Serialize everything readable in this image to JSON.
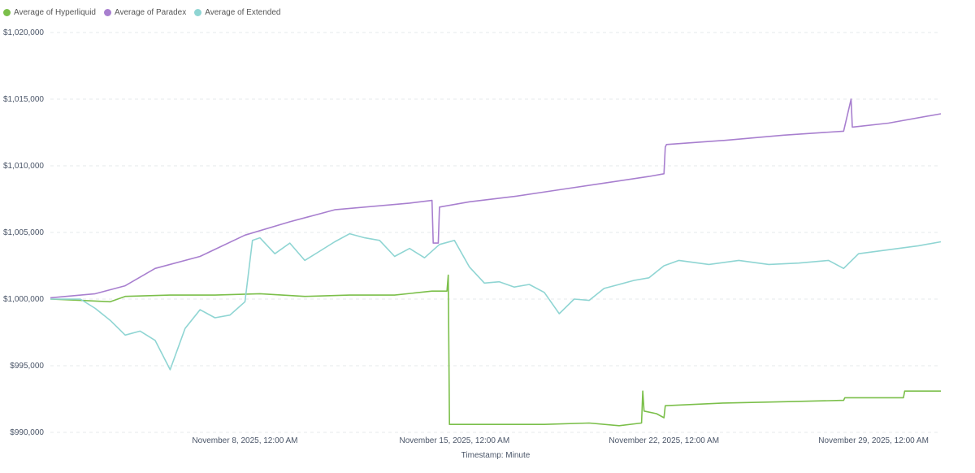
{
  "chart_data": {
    "type": "line",
    "xlabel": "Timestamp: Minute",
    "ylabel": "",
    "ylim": [
      990000,
      1020000
    ],
    "yticks": [
      990000,
      995000,
      1000000,
      1005000,
      1010000,
      1015000,
      1020000
    ],
    "ytick_labels": [
      "$990,000",
      "$995,000",
      "$1,000,000",
      "$1,005,000",
      "$1,010,000",
      "$1,015,000",
      "$1,020,000"
    ],
    "xlim": [
      "2025-11-01T12:00",
      "2025-12-01T06:00"
    ],
    "xticks": [
      "2025-11-08T00:00",
      "2025-11-15T00:00",
      "2025-11-22T00:00",
      "2025-11-29T00:00"
    ],
    "xtick_labels": [
      "November 8, 2025, 12:00 AM",
      "November 15, 2025, 12:00 AM",
      "November 22, 2025, 12:00 AM",
      "November 29, 2025, 12:00 AM"
    ],
    "grid": "horizontal dashed",
    "legend_position": "top-left",
    "series": [
      {
        "name": "Average of Hyperliquid",
        "color": "#7bbf4a",
        "points": [
          [
            "2025-11-01T12:00",
            1000000
          ],
          [
            "2025-11-02T12:00",
            999900
          ],
          [
            "2025-11-03T12:00",
            999800
          ],
          [
            "2025-11-04T00:00",
            1000200
          ],
          [
            "2025-11-05T12:00",
            1000300
          ],
          [
            "2025-11-07T00:00",
            1000300
          ],
          [
            "2025-11-08T12:00",
            1000400
          ],
          [
            "2025-11-10T00:00",
            1000200
          ],
          [
            "2025-11-11T12:00",
            1000300
          ],
          [
            "2025-11-13T00:00",
            1000300
          ],
          [
            "2025-11-14T06:00",
            1000600
          ],
          [
            "2025-11-14T18:00",
            1000600
          ],
          [
            "2025-11-14T19:00",
            1001800
          ],
          [
            "2025-11-14T20:00",
            990600
          ],
          [
            "2025-11-16T00:00",
            990600
          ],
          [
            "2025-11-18T00:00",
            990600
          ],
          [
            "2025-11-19T12:00",
            990700
          ],
          [
            "2025-11-20T12:00",
            990500
          ],
          [
            "2025-11-21T06:00",
            990700
          ],
          [
            "2025-11-21T07:00",
            993100
          ],
          [
            "2025-11-21T08:00",
            991600
          ],
          [
            "2025-11-21T18:00",
            991400
          ],
          [
            "2025-11-22T00:00",
            991100
          ],
          [
            "2025-11-22T01:00",
            992000
          ],
          [
            "2025-11-24T00:00",
            992200
          ],
          [
            "2025-11-26T00:00",
            992300
          ],
          [
            "2025-11-28T00:00",
            992400
          ],
          [
            "2025-11-28T01:00",
            992600
          ],
          [
            "2025-11-30T00:00",
            992600
          ],
          [
            "2025-11-30T01:00",
            993100
          ],
          [
            "2025-12-01T06:00",
            993100
          ]
        ]
      },
      {
        "name": "Average of Paradex",
        "color": "#a87fcf",
        "points": [
          [
            "2025-11-01T12:00",
            1000100
          ],
          [
            "2025-11-03T00:00",
            1000400
          ],
          [
            "2025-11-04T00:00",
            1001000
          ],
          [
            "2025-11-05T00:00",
            1002300
          ],
          [
            "2025-11-06T12:00",
            1003200
          ],
          [
            "2025-11-08T00:00",
            1004800
          ],
          [
            "2025-11-09T12:00",
            1005800
          ],
          [
            "2025-11-11T00:00",
            1006700
          ],
          [
            "2025-11-13T12:00",
            1007200
          ],
          [
            "2025-11-14T06:00",
            1007400
          ],
          [
            "2025-11-14T07:00",
            1004200
          ],
          [
            "2025-11-14T11:00",
            1004200
          ],
          [
            "2025-11-14T12:00",
            1006900
          ],
          [
            "2025-11-15T12:00",
            1007300
          ],
          [
            "2025-11-17T00:00",
            1007700
          ],
          [
            "2025-11-18T12:00",
            1008200
          ],
          [
            "2025-11-20T00:00",
            1008700
          ],
          [
            "2025-11-21T12:00",
            1009200
          ],
          [
            "2025-11-22T00:00",
            1009400
          ],
          [
            "2025-11-22T01:00",
            1011400
          ],
          [
            "2025-11-22T02:00",
            1011600
          ],
          [
            "2025-11-24T00:00",
            1011900
          ],
          [
            "2025-11-26T00:00",
            1012300
          ],
          [
            "2025-11-28T00:00",
            1012600
          ],
          [
            "2025-11-28T06:00",
            1015000
          ],
          [
            "2025-11-28T07:00",
            1012900
          ],
          [
            "2025-11-29T12:00",
            1013200
          ],
          [
            "2025-12-01T06:00",
            1013900
          ]
        ]
      },
      {
        "name": "Average of Extended",
        "color": "#8fd5d3",
        "points": [
          [
            "2025-11-01T12:00",
            1000000
          ],
          [
            "2025-11-02T12:00",
            1000000
          ],
          [
            "2025-11-03T00:00",
            999300
          ],
          [
            "2025-11-03T12:00",
            998400
          ],
          [
            "2025-11-04T00:00",
            997300
          ],
          [
            "2025-11-04T12:00",
            997600
          ],
          [
            "2025-11-05T00:00",
            996900
          ],
          [
            "2025-11-05T12:00",
            994700
          ],
          [
            "2025-11-06T00:00",
            997800
          ],
          [
            "2025-11-06T12:00",
            999200
          ],
          [
            "2025-11-07T00:00",
            998600
          ],
          [
            "2025-11-07T12:00",
            998800
          ],
          [
            "2025-11-08T00:00",
            999800
          ],
          [
            "2025-11-08T06:00",
            1004400
          ],
          [
            "2025-11-08T12:00",
            1004600
          ],
          [
            "2025-11-09T00:00",
            1003400
          ],
          [
            "2025-11-09T12:00",
            1004200
          ],
          [
            "2025-11-10T00:00",
            1002900
          ],
          [
            "2025-11-10T12:00",
            1003600
          ],
          [
            "2025-11-11T00:00",
            1004300
          ],
          [
            "2025-11-11T12:00",
            1004900
          ],
          [
            "2025-11-12T00:00",
            1004600
          ],
          [
            "2025-11-12T12:00",
            1004400
          ],
          [
            "2025-11-13T00:00",
            1003200
          ],
          [
            "2025-11-13T12:00",
            1003800
          ],
          [
            "2025-11-14T00:00",
            1003100
          ],
          [
            "2025-11-14T12:00",
            1004100
          ],
          [
            "2025-11-15T00:00",
            1004400
          ],
          [
            "2025-11-15T12:00",
            1002400
          ],
          [
            "2025-11-16T00:00",
            1001200
          ],
          [
            "2025-11-16T12:00",
            1001300
          ],
          [
            "2025-11-17T00:00",
            1000900
          ],
          [
            "2025-11-17T12:00",
            1001100
          ],
          [
            "2025-11-18T00:00",
            1000500
          ],
          [
            "2025-11-18T12:00",
            998900
          ],
          [
            "2025-11-19T00:00",
            1000000
          ],
          [
            "2025-11-19T12:00",
            999900
          ],
          [
            "2025-11-20T00:00",
            1000800
          ],
          [
            "2025-11-20T12:00",
            1001100
          ],
          [
            "2025-11-21T00:00",
            1001400
          ],
          [
            "2025-11-21T12:00",
            1001600
          ],
          [
            "2025-11-22T00:00",
            1002500
          ],
          [
            "2025-11-22T12:00",
            1002900
          ],
          [
            "2025-11-23T12:00",
            1002600
          ],
          [
            "2025-11-24T12:00",
            1002900
          ],
          [
            "2025-11-25T12:00",
            1002600
          ],
          [
            "2025-11-26T12:00",
            1002700
          ],
          [
            "2025-11-27T12:00",
            1002900
          ],
          [
            "2025-11-28T00:00",
            1002300
          ],
          [
            "2025-11-28T12:00",
            1003400
          ],
          [
            "2025-11-29T12:00",
            1003700
          ],
          [
            "2025-11-30T12:00",
            1004000
          ],
          [
            "2025-12-01T06:00",
            1004300
          ]
        ]
      }
    ]
  }
}
